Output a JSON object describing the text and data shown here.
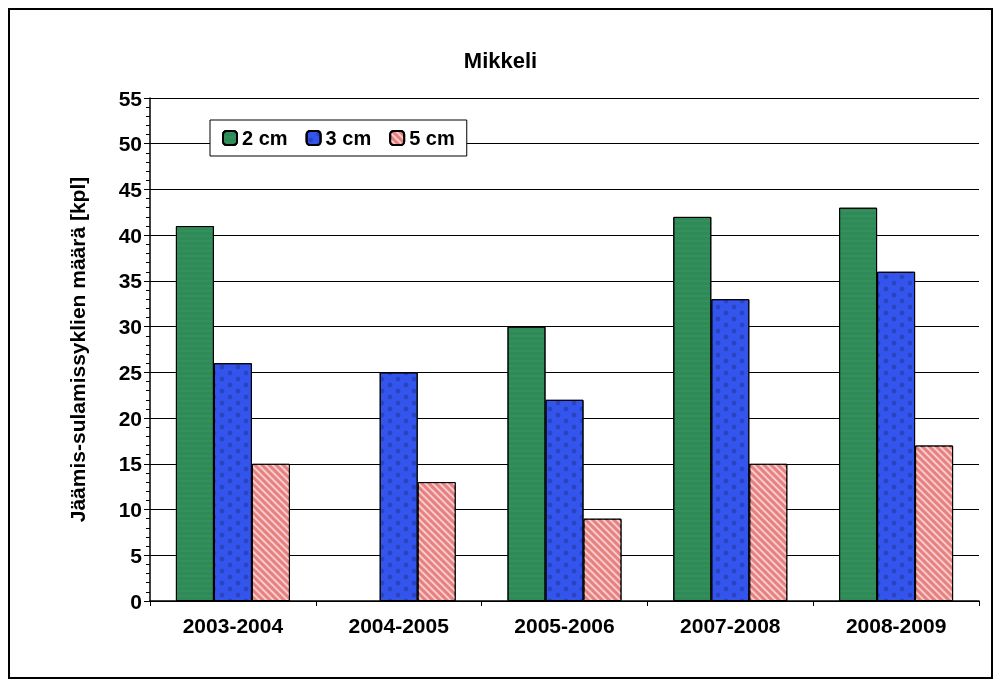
{
  "chart_data": {
    "type": "bar",
    "title": "Mikkeli",
    "ylabel": "Jäämis-sulamissyklien määrä [kpl]",
    "categories": [
      "2003-2004",
      "2004-2005",
      "2005-2006",
      "2007-2008",
      "2008-2009"
    ],
    "series": [
      {
        "name": "2 cm",
        "color": "#2e8b57",
        "values": [
          41,
          null,
          30,
          42,
          43
        ]
      },
      {
        "name": "3 cm",
        "color": "#3355ee",
        "values": [
          26,
          25,
          22,
          33,
          36
        ]
      },
      {
        "name": "5 cm",
        "color": "#e88080",
        "values": [
          15,
          13,
          9,
          15,
          17
        ]
      }
    ],
    "ylim": [
      0,
      55
    ],
    "yticks": [
      0,
      5,
      10,
      15,
      20,
      25,
      30,
      35,
      40,
      45,
      50,
      55
    ],
    "grid": "y",
    "legend": "top left"
  }
}
